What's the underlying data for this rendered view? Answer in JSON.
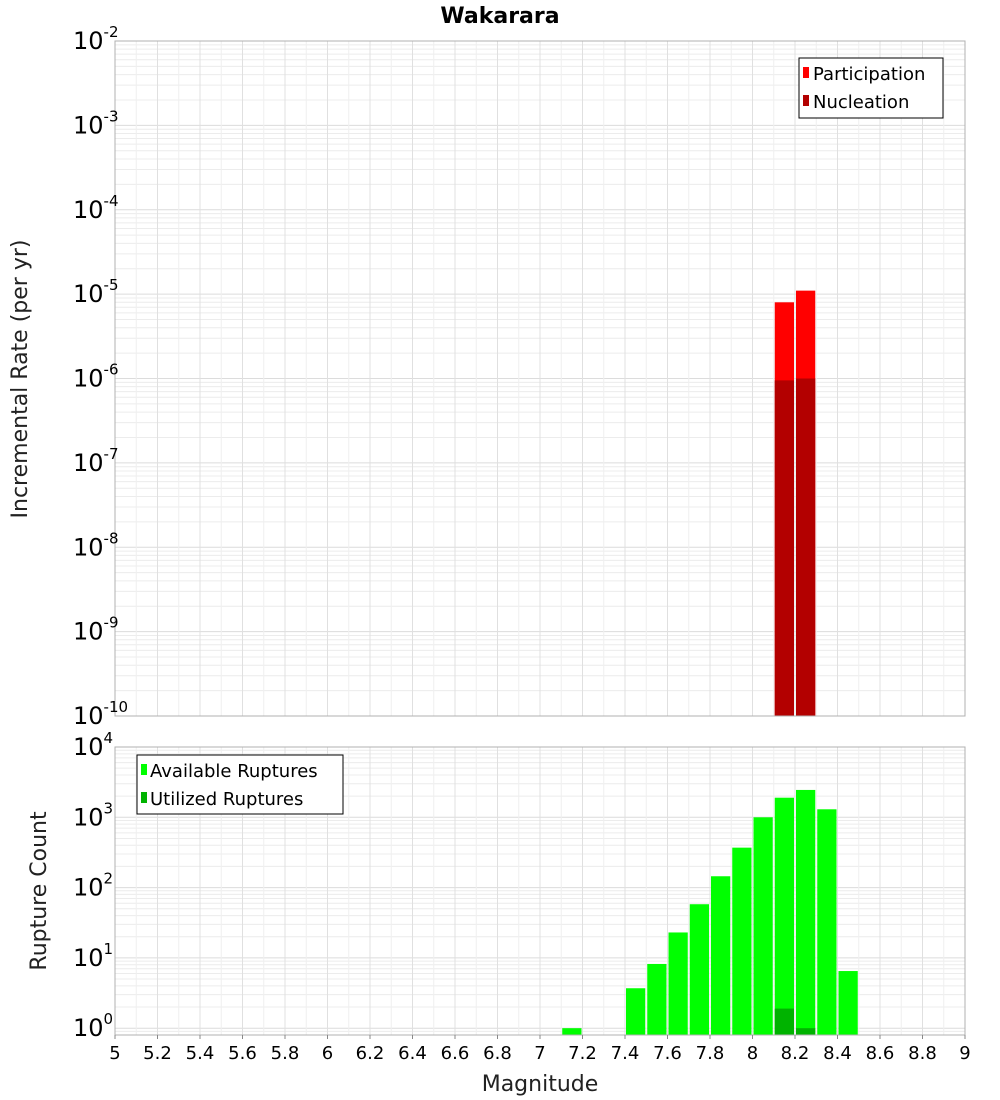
{
  "chart_data": [
    {
      "type": "bar",
      "title": "Wakarara",
      "ylabel": "Incremental Rate (per yr)",
      "xlabel": "",
      "y_scale": "log",
      "xlim": [
        5,
        9
      ],
      "ylim": [
        1e-10,
        0.01
      ],
      "y_ticks_exp": [
        -10,
        -9,
        -8,
        -7,
        -6,
        -5,
        -4,
        -3,
        -2
      ],
      "grid": true,
      "legend_position": "top-right",
      "bin_width": 0.1,
      "series": [
        {
          "name": "Participation",
          "color": "#ff0000",
          "x": [
            8.15,
            8.25
          ],
          "values": [
            8e-06,
            1.1e-05
          ]
        },
        {
          "name": "Nucleation",
          "color": "#b30000",
          "x": [
            8.15,
            8.25
          ],
          "values": [
            9.5e-07,
            1e-06
          ]
        }
      ]
    },
    {
      "type": "bar",
      "title": "",
      "ylabel": "Rupture Count",
      "xlabel": "Magnitude",
      "y_scale": "log",
      "xlim": [
        5,
        9
      ],
      "ylim": [
        0.8,
        10000
      ],
      "y_ticks_exp": [
        0,
        1,
        2,
        3,
        4
      ],
      "x_ticks": [
        "5",
        "5.2",
        "5.4",
        "5.6",
        "5.8",
        "6",
        "6.2",
        "6.4",
        "6.6",
        "6.8",
        "7",
        "7.2",
        "7.4",
        "7.6",
        "7.8",
        "8",
        "8.2",
        "8.4",
        "8.6",
        "8.8",
        "9"
      ],
      "grid": true,
      "legend_position": "top-left",
      "bin_width": 0.1,
      "series": [
        {
          "name": "Available Ruptures",
          "color": "#00ff00",
          "x": [
            7.15,
            7.45,
            7.55,
            7.65,
            7.75,
            7.85,
            7.95,
            8.05,
            8.15,
            8.25,
            8.35,
            8.45
          ],
          "values": [
            1,
            3.7,
            8.2,
            23,
            58,
            145,
            370,
            1000,
            1900,
            2450,
            1300,
            6.5
          ]
        },
        {
          "name": "Utilized Ruptures",
          "color": "#00b300",
          "x": [
            8.15,
            8.25
          ],
          "values": [
            1.9,
            1
          ]
        }
      ]
    }
  ]
}
